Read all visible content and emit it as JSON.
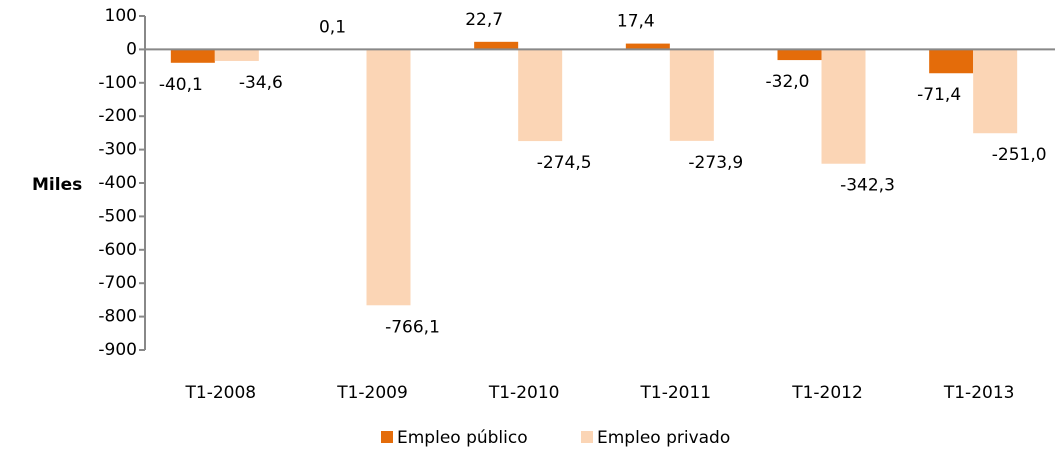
{
  "chart_data": {
    "type": "bar",
    "y_label": "Miles",
    "categories": [
      "T1-2008",
      "T1-2009",
      "T1-2010",
      "T1-2011",
      "T1-2012",
      "T1-2013"
    ],
    "series": [
      {
        "name": "Empleo público",
        "color": "#e46c0a",
        "values": [
          -40.1,
          0.1,
          22.7,
          17.4,
          -32.0,
          -71.4
        ],
        "value_labels": [
          "-40,1",
          "0,1",
          "22,7",
          "17,4",
          "-32,0",
          "-71,4"
        ]
      },
      {
        "name": "Empleo privado",
        "color": "#fbd5b5",
        "values": [
          -34.6,
          -766.1,
          -274.5,
          -273.9,
          -342.3,
          -251.0
        ],
        "value_labels": [
          "-34,6",
          "-766,1",
          "-274,5",
          "-273,9",
          "-342,3",
          "-251,0"
        ]
      }
    ],
    "ylim": [
      -900,
      100
    ],
    "yticks": [
      100,
      0,
      -100,
      -200,
      -300,
      -400,
      -500,
      -600,
      -700,
      -800,
      -900
    ],
    "grid": false,
    "legend": "bottom"
  }
}
